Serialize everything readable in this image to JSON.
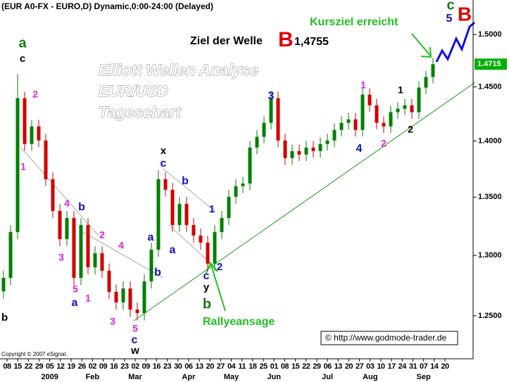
{
  "chart_data": {
    "type": "candlestick",
    "title": "(EUR A0-FX - EURO,D) Dynamic,0:00-24:00 (Delayed)",
    "watermark": [
      "Elliott Wellen Analyse",
      "EUR/USD",
      "Tageschart"
    ],
    "target_text": "Ziel der Welle",
    "target_wave": "B",
    "target_value": "1,4755",
    "reached_text": "Kursziel erreicht",
    "rally_text": "Rallyeansage",
    "source": "© http://www.godmode-trader.de",
    "copyright": "Copyright © 2007 eSignal.",
    "log_scale": true,
    "up_color": "#008000",
    "down_color": "#d00000",
    "ylim": [
      1.2157,
      1.534
    ],
    "yticks": [
      {
        "value": 1.25,
        "label": "1.2500"
      },
      {
        "value": 1.3,
        "label": "1.3000"
      },
      {
        "value": 1.35,
        "label": "1.3500"
      },
      {
        "value": 1.4,
        "label": "1.4000"
      },
      {
        "value": 1.45,
        "label": "1.4500"
      },
      {
        "value": 1.5,
        "label": "1.5000"
      }
    ],
    "last_price": {
      "value": 1.4715,
      "label": "1.4715"
    },
    "x_labels": [
      "08",
      "15",
      "22",
      "29",
      "05",
      "12",
      "19",
      "26",
      "02",
      "09",
      "16",
      "23",
      "02",
      "09",
      "16",
      "23",
      "30",
      "06",
      "13",
      "20",
      "27",
      "04",
      "11",
      "18",
      "25",
      "01",
      "08",
      "15",
      "22",
      "29",
      "06",
      "13",
      "20",
      "27",
      "03",
      "10",
      "17",
      "24",
      "31",
      "07",
      "14",
      "20"
    ],
    "months": [
      "2009",
      "Feb",
      "Mar",
      "Apr",
      "May",
      "Jun",
      "Jul",
      "Aug",
      "Sep"
    ],
    "open": [
      1.27,
      1.2812,
      1.3198,
      1.4394,
      1.3973,
      1.4133,
      1.4005,
      1.3658,
      1.338,
      1.3138,
      1.3319,
      1.2812,
      1.3258,
      1.29,
      1.3018,
      1.2871,
      1.2696,
      1.2609,
      1.2724,
      1.2551,
      1.2523,
      1.2783,
      1.3048,
      1.3658,
      1.3564,
      1.3258,
      1.3441,
      1.3258,
      1.3168,
      1.3108,
      1.293,
      1.3198,
      1.3319,
      1.3503,
      1.3596,
      1.362,
      1.3941,
      1.4038,
      1.4166,
      1.4394,
      1.4005,
      1.3846,
      1.3909,
      1.3878,
      1.3941,
      1.3909,
      1.3973,
      1.4005,
      1.4101,
      1.4166,
      1.4198,
      1.4101,
      1.4427,
      1.4328,
      1.4166,
      1.4133,
      1.4264,
      1.4296,
      1.4328,
      1.4264,
      1.4493,
      1.4593
    ],
    "high": [
      1.2872,
      1.3258,
      1.462,
      1.4454,
      1.4193,
      1.4193,
      1.4065,
      1.3718,
      1.344,
      1.3379,
      1.3379,
      1.3318,
      1.3318,
      1.3078,
      1.3078,
      1.2931,
      1.2756,
      1.2784,
      1.2784,
      1.2611,
      1.2843,
      1.3108,
      1.3738,
      1.3718,
      1.3624,
      1.3501,
      1.3501,
      1.3318,
      1.3228,
      1.3168,
      1.3258,
      1.3379,
      1.3563,
      1.3656,
      1.368,
      1.4001,
      1.4098,
      1.4226,
      1.4454,
      1.4454,
      1.4065,
      1.3969,
      1.3969,
      1.4001,
      1.4001,
      1.4033,
      1.4065,
      1.4161,
      1.4226,
      1.4258,
      1.4258,
      1.4487,
      1.4487,
      1.4388,
      1.4226,
      1.4324,
      1.4356,
      1.4388,
      1.4388,
      1.4553,
      1.4653,
      1.4775
    ],
    "low": [
      1.264,
      1.2752,
      1.3138,
      1.3913,
      1.3913,
      1.3945,
      1.3598,
      1.332,
      1.3078,
      1.3078,
      1.2752,
      1.2752,
      1.284,
      1.284,
      1.2811,
      1.2636,
      1.2549,
      1.2549,
      1.2491,
      1.2463,
      1.2463,
      1.2723,
      1.2988,
      1.3504,
      1.3198,
      1.3198,
      1.3198,
      1.3108,
      1.3048,
      1.287,
      1.287,
      1.3138,
      1.3259,
      1.3443,
      1.3536,
      1.356,
      1.3881,
      1.3978,
      1.4106,
      1.3945,
      1.3786,
      1.3786,
      1.3818,
      1.3818,
      1.3849,
      1.3849,
      1.3913,
      1.3945,
      1.4041,
      1.4106,
      1.4041,
      1.4041,
      1.4268,
      1.4106,
      1.4073,
      1.4073,
      1.4204,
      1.4236,
      1.4204,
      1.4204,
      1.4433,
      1.4533
    ],
    "close": [
      1.2812,
      1.3198,
      1.4394,
      1.3973,
      1.4133,
      1.4005,
      1.3658,
      1.338,
      1.3138,
      1.3319,
      1.2812,
      1.3258,
      1.29,
      1.3018,
      1.2871,
      1.2696,
      1.2609,
      1.2724,
      1.2551,
      1.2523,
      1.2783,
      1.3048,
      1.3658,
      1.3564,
      1.3258,
      1.3441,
      1.3258,
      1.3168,
      1.3108,
      1.293,
      1.3198,
      1.3319,
      1.3503,
      1.3596,
      1.362,
      1.3941,
      1.4038,
      1.4166,
      1.4394,
      1.4005,
      1.3846,
      1.3909,
      1.3878,
      1.3941,
      1.3909,
      1.3973,
      1.4005,
      1.4101,
      1.4166,
      1.4198,
      1.4101,
      1.4427,
      1.4328,
      1.4166,
      1.4133,
      1.4264,
      1.4296,
      1.4328,
      1.4264,
      1.4493,
      1.4593,
      1.4715
    ],
    "annotations": [
      {
        "text": "a",
        "color": "#1a7a1a"
      },
      {
        "text": "c",
        "color": "#000000"
      },
      {
        "text": "2",
        "color": "#e020e0"
      },
      {
        "text": "1",
        "color": "#e020e0"
      },
      {
        "text": "4",
        "color": "#e020e0"
      },
      {
        "text": "b",
        "color": "#1010c0"
      },
      {
        "text": "3",
        "color": "#e020e0"
      },
      {
        "text": "2",
        "color": "#e020e0"
      },
      {
        "text": "4",
        "color": "#e020e0"
      },
      {
        "text": "5",
        "color": "#e020e0"
      },
      {
        "text": "a",
        "color": "#1010c0"
      },
      {
        "text": "1",
        "color": "#e020e0"
      },
      {
        "text": "3",
        "color": "#e020e0"
      },
      {
        "text": "5",
        "color": "#e020e0"
      },
      {
        "text": "c",
        "color": "#1010c0"
      },
      {
        "text": "w",
        "color": "#000000"
      },
      {
        "text": "b",
        "color": "#1010c0"
      },
      {
        "text": "a",
        "color": "#1010c0"
      },
      {
        "text": "x",
        "color": "#000000"
      },
      {
        "text": "c",
        "color": "#1010c0"
      },
      {
        "text": "b",
        "color": "#1010c0"
      },
      {
        "text": "a",
        "color": "#1010c0"
      },
      {
        "text": "1",
        "color": "#1010c0"
      },
      {
        "text": "2",
        "color": "#1010c0"
      },
      {
        "text": "c",
        "color": "#1010c0"
      },
      {
        "text": "y",
        "color": "#000000"
      },
      {
        "text": "b",
        "color": "#1a7a1a"
      },
      {
        "text": "3",
        "color": "#1010c0"
      },
      {
        "text": "4",
        "color": "#1010c0"
      },
      {
        "text": "1",
        "color": "#e020e0"
      },
      {
        "text": "2",
        "color": "#e020e0"
      },
      {
        "text": "1",
        "color": "#000000"
      },
      {
        "text": "2",
        "color": "#000000"
      },
      {
        "text": "c",
        "color": "#1a7a1a"
      },
      {
        "text": "5",
        "color": "#1010c0"
      },
      {
        "text": "B",
        "color": "#e00000"
      },
      {
        "text": "b",
        "color": "#000000"
      }
    ]
  }
}
